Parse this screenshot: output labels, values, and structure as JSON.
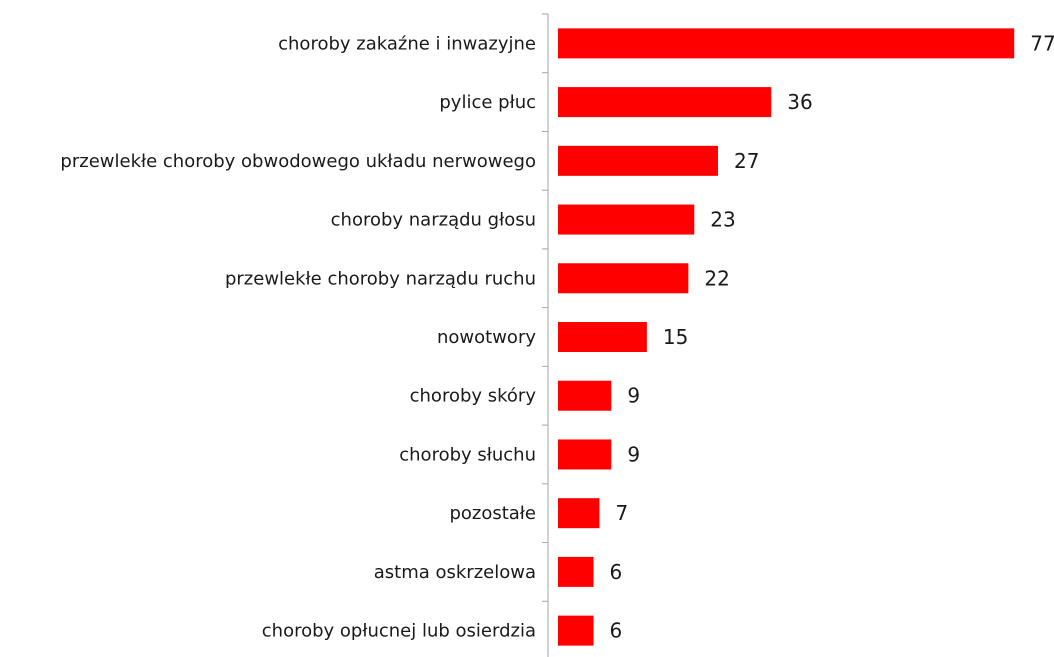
{
  "chart_data": {
    "type": "bar",
    "orientation": "horizontal",
    "categories": [
      "choroby zakaźne i inwazyjne",
      "pylice płuc",
      "przewlekłe choroby obwodowego układu nerwowego",
      "choroby narządu głosu",
      "przewlekłe choroby narządu ruchu",
      "nowotwory",
      "choroby skóry",
      "choroby słuchu",
      "pozostałe",
      "astma oskrzelowa",
      "choroby opłucnej lub osierdzia"
    ],
    "values": [
      77,
      36,
      27,
      23,
      22,
      15,
      9,
      9,
      7,
      6,
      6
    ],
    "data_labels": [
      "77",
      "36",
      "27",
      "23",
      "22",
      "15",
      "9",
      "9",
      "7",
      "6",
      "6"
    ],
    "xlim": [
      0,
      80
    ],
    "grid": false,
    "legend": "none",
    "bar_color": "#ff0000",
    "axis_color": "#a6a6a6",
    "text_color": "#1a1a1a"
  }
}
